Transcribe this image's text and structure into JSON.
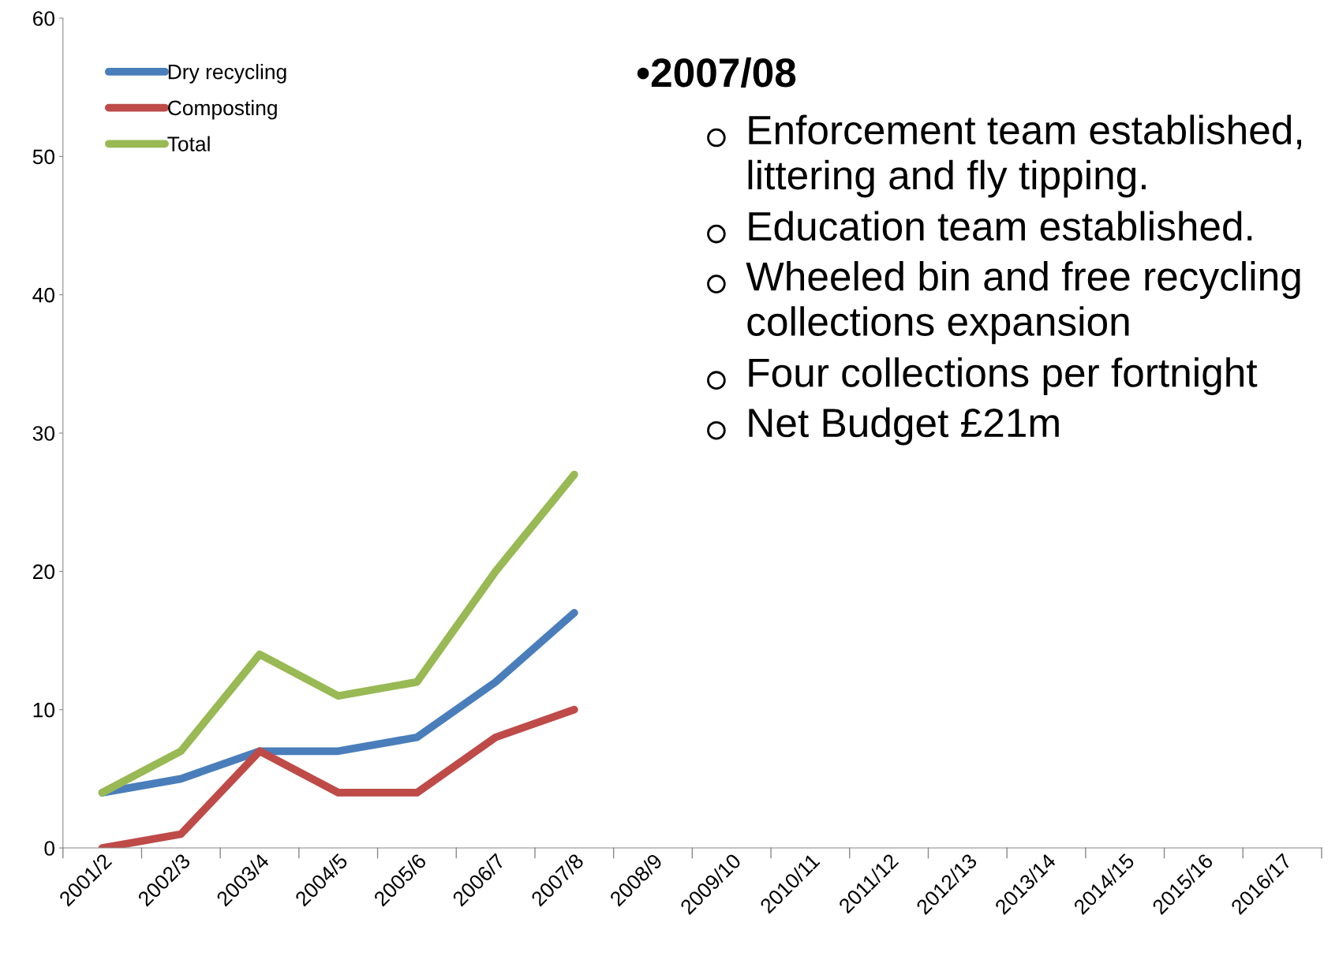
{
  "chart_data": {
    "type": "line",
    "categories": [
      "2001/2",
      "2002/3",
      "2003/4",
      "2004/5",
      "2005/6",
      "2006/7",
      "2007/8",
      "2008/9",
      "2009/10",
      "2010/11",
      "2011/12",
      "2012/13",
      "2013/14",
      "2014/15",
      "2015/16",
      "2016/17"
    ],
    "series": [
      {
        "name": "Dry recycling",
        "color": "#4a7ebb",
        "values": [
          4,
          5,
          7,
          7,
          8,
          12,
          17,
          null,
          null,
          null,
          null,
          null,
          null,
          null,
          null,
          null
        ]
      },
      {
        "name": "Composting",
        "color": "#be4b48",
        "values": [
          0,
          1,
          7,
          4,
          4,
          8,
          10,
          null,
          null,
          null,
          null,
          null,
          null,
          null,
          null,
          null
        ]
      },
      {
        "name": "Total",
        "color": "#98b954",
        "values": [
          4,
          7,
          14,
          11,
          12,
          20,
          27,
          null,
          null,
          null,
          null,
          null,
          null,
          null,
          null,
          null
        ]
      }
    ],
    "ylim": [
      0,
      60
    ],
    "yticks": [
      0,
      10,
      20,
      30,
      40,
      50,
      60
    ],
    "grid": false,
    "legend": "top left",
    "marker": "none",
    "line_style": "solid",
    "annotations": [
      "•2007/08",
      "Enforcement team established, littering and fly tipping.",
      "Education team established.",
      "Wheeled bin and free recycling collections expansion",
      "Four collections per fortnight",
      "Net Budget £21m"
    ]
  }
}
